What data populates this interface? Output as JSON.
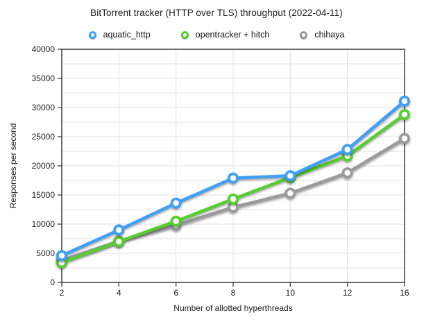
{
  "title": "BitTorrent tracker (HTTP over TLS) throughput (2022-04-11)",
  "chart_data": {
    "type": "line",
    "categories": [
      2,
      4,
      6,
      8,
      10,
      12,
      16
    ],
    "series": [
      {
        "name": "aquatic_http",
        "color": "#3FA0F5",
        "values": [
          4600,
          9000,
          13600,
          17900,
          18300,
          22800,
          31100
        ]
      },
      {
        "name": "opentracker + hitch",
        "color": "#56CE30",
        "values": [
          3400,
          7000,
          10500,
          14300,
          18000,
          21700,
          28800
        ]
      },
      {
        "name": "chihaya",
        "color": "#9B9B9B",
        "values": [
          3800,
          7100,
          9800,
          12900,
          15300,
          18800,
          24700
        ]
      }
    ],
    "xlabel": "Number of allotted hyperthreads",
    "ylabel": "Responses per second",
    "ylim": [
      0,
      40000
    ],
    "y_tick_step": 5000,
    "y_minor_step": 2500,
    "grid": true,
    "legend_position": "top",
    "axis_color": "#3c3c3c",
    "gridline_color": "#e2e2e2",
    "marker_style": "donut"
  }
}
